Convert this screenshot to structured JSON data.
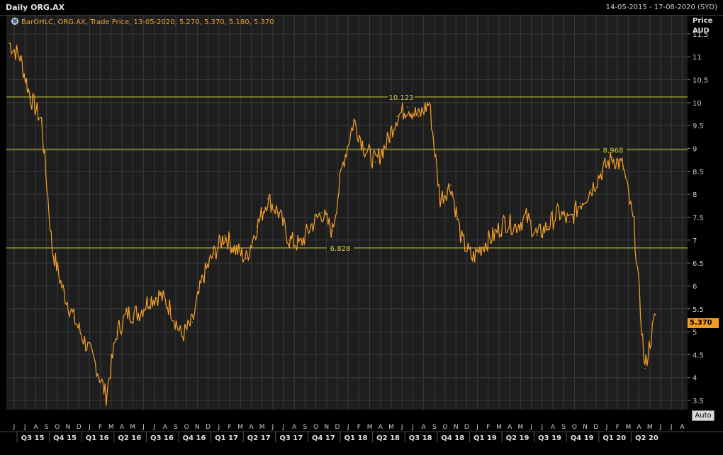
{
  "header": {
    "title": "Daily ORG.AX",
    "date_range": "14-05-2015 - 17-08-2020 (SYD)"
  },
  "legend": {
    "icon": "chart-settings-icon",
    "text": "BarOHLC, ORG.AX, Trade Price, 13-05-2020, 5.270, 5.370, 5.180, 5.370"
  },
  "axis": {
    "y_title_line1": "Price",
    "y_title_line2": "AUD",
    "auto_label": "Auto",
    "last_price": "5.370"
  },
  "colors": {
    "background": "#000000",
    "plot_bg": "#1e1e1e",
    "grid": "#3a3a3a",
    "price_line": "#f5a02a",
    "level_line": "#d4d43a",
    "badge": "#f29a1f"
  },
  "chart_data": {
    "type": "line",
    "title": "Daily ORG.AX",
    "ylabel": "Price AUD",
    "ylim": [
      3.3,
      11.9
    ],
    "yticks": [
      3.5,
      4,
      4.5,
      5,
      5.5,
      6,
      6.5,
      7,
      7.5,
      8,
      8.5,
      9,
      9.5,
      10,
      10.5,
      11,
      11.5
    ],
    "ytick_labels": [
      "3.5",
      "4",
      "4.5",
      "5",
      "5.5",
      "6",
      "6.5",
      "7",
      "7.5",
      "8",
      "8.5",
      "9",
      "9.5",
      "10",
      "10.5",
      "11",
      "11.5"
    ],
    "x_month_labels": [
      "J",
      "J",
      "A",
      "S",
      "O",
      "N",
      "D",
      "J",
      "F",
      "M",
      "A",
      "M",
      "J",
      "J",
      "A",
      "S",
      "O",
      "N",
      "D",
      "J",
      "F",
      "M",
      "A",
      "M",
      "J",
      "J",
      "A",
      "S",
      "O",
      "N",
      "D",
      "J",
      "F",
      "M",
      "A",
      "M",
      "J",
      "J",
      "A",
      "S",
      "O",
      "N",
      "D",
      "J",
      "F",
      "M",
      "A",
      "M",
      "J",
      "J",
      "A",
      "S",
      "O",
      "N",
      "D",
      "J",
      "F",
      "M",
      "A",
      "M",
      "J",
      "J",
      "A"
    ],
    "x_quarter_labels": [
      "Q3 15",
      "Q4 15",
      "Q1 16",
      "Q2 16",
      "Q3 16",
      "Q4 16",
      "Q1 17",
      "Q2 17",
      "Q3 17",
      "Q4 17",
      "Q1 18",
      "Q2 18",
      "Q3 18",
      "Q4 18",
      "Q1 19",
      "Q2 19",
      "Q3 19",
      "Q4 19",
      "Q1 20",
      "Q2 20"
    ],
    "level_lines": [
      {
        "value": 10.123,
        "label": "10.123"
      },
      {
        "value": 8.968,
        "label": "8.968"
      },
      {
        "value": 6.828,
        "label": "6.828"
      }
    ],
    "series": [
      {
        "x": [
          "2015-05",
          "2015-06",
          "2015-07",
          "2015-08",
          "2015-09",
          "2015-10",
          "2015-11",
          "2015-12",
          "2016-01",
          "2016-02",
          "2016-03",
          "2016-04",
          "2016-05",
          "2016-06",
          "2016-07",
          "2016-08",
          "2016-09",
          "2016-10",
          "2016-11",
          "2016-12",
          "2017-01",
          "2017-02",
          "2017-03",
          "2017-04",
          "2017-05",
          "2017-06",
          "2017-07",
          "2017-08",
          "2017-09",
          "2017-10",
          "2017-11",
          "2017-12",
          "2018-01",
          "2018-02",
          "2018-03",
          "2018-04",
          "2018-05",
          "2018-06",
          "2018-07",
          "2018-08",
          "2018-09",
          "2018-10",
          "2018-11",
          "2018-12",
          "2019-01",
          "2019-02",
          "2019-03",
          "2019-04",
          "2019-05",
          "2019-06",
          "2019-07",
          "2019-08",
          "2019-09",
          "2019-10",
          "2019-11",
          "2019-12",
          "2020-01",
          "2020-02",
          "2020-03",
          "2020-04",
          "2020-05"
        ],
        "values": [
          11.3,
          11.0,
          10.1,
          9.6,
          6.8,
          5.9,
          5.3,
          4.8,
          4.3,
          3.6,
          5.0,
          5.4,
          5.4,
          5.7,
          5.8,
          5.5,
          4.9,
          5.2,
          6.2,
          6.7,
          7.1,
          6.8,
          6.6,
          7.3,
          7.9,
          7.6,
          7.0,
          6.9,
          7.3,
          7.6,
          7.2,
          8.7,
          9.6,
          9.0,
          8.7,
          9.1,
          9.7,
          9.9,
          9.7,
          10.0,
          7.9,
          8.2,
          7.0,
          6.6,
          6.9,
          7.1,
          7.4,
          7.3,
          7.5,
          7.1,
          7.3,
          7.6,
          7.4,
          7.8,
          8.1,
          8.5,
          8.8,
          8.6,
          7.3,
          4.2,
          5.37
        ]
      }
    ]
  }
}
